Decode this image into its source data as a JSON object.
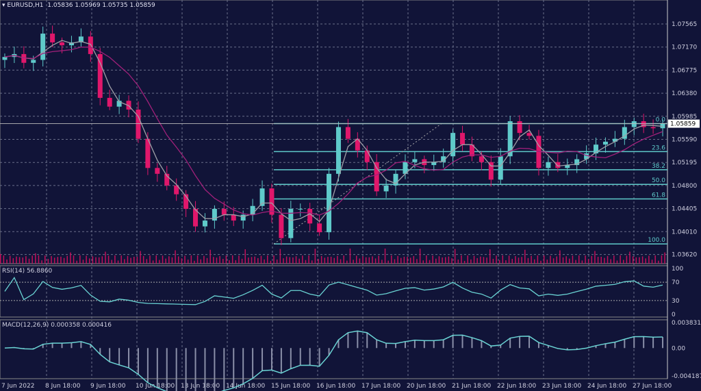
{
  "header": {
    "symbol": "EURUSD,H1",
    "ohlc": "1.05836 1.05969 1.05735 1.05859",
    "menu_icon": "triangle-down-icon"
  },
  "colors": {
    "background": "#111438",
    "bull": "#5fcaca",
    "bear": "#e0176b",
    "ma_fast": "#a0a0a8",
    "ma_slow": "#a0207a",
    "fib": "#5fcaca",
    "volume": "#c0105a",
    "indicator": "#6ad4d4",
    "grid": "#6a6f8a"
  },
  "chart_data": {
    "type": "candlestick",
    "instrument": "EURUSD",
    "timeframe": "H1",
    "x_tick_labels": [
      "7 Jun 2022",
      "8 Jun 18:00",
      "9 Jun 18:00",
      "10 Jun 18:00",
      "13 Jun 18:00",
      "14 Jun 18:00",
      "15 Jun 18:00",
      "16 Jun 18:00",
      "17 Jun 18:00",
      "20 Jun 18:00",
      "21 Jun 18:00",
      "22 Jun 18:00",
      "23 Jun 18:00",
      "24 Jun 18:00",
      "27 Jun 18:00"
    ],
    "y_tick_labels": [
      "1.07565",
      "1.07170",
      "1.06775",
      "1.06380",
      "1.05985",
      "1.05590",
      "1.05195",
      "1.04800",
      "1.04405",
      "1.04010",
      "1.03620"
    ],
    "ylim": [
      1.0345,
      1.0795
    ],
    "current_price": "1.05859",
    "close": [
      1.07,
      1.0705,
      1.069,
      1.0695,
      1.074,
      1.0725,
      1.072,
      1.0725,
      1.0735,
      1.0705,
      1.063,
      1.0615,
      1.0625,
      1.061,
      1.056,
      1.051,
      1.05,
      1.048,
      1.0465,
      1.044,
      1.041,
      1.042,
      1.044,
      1.043,
      1.042,
      1.043,
      1.0445,
      1.0475,
      1.043,
      1.039,
      1.044,
      1.044,
      1.0415,
      1.04,
      1.05,
      1.058,
      1.056,
      1.054,
      1.052,
      1.047,
      1.048,
      1.05,
      1.052,
      1.0525,
      1.0515,
      1.052,
      1.053,
      1.057,
      1.055,
      1.053,
      1.052,
      1.049,
      1.053,
      1.059,
      1.057,
      1.0565,
      1.051,
      1.052,
      1.051,
      1.0515,
      1.0525,
      1.0535,
      1.055,
      1.0555,
      1.056,
      1.058,
      1.059,
      1.058,
      1.0578,
      1.0586
    ],
    "fibonacci": [
      {
        "label": "0.0",
        "price": 1.0586
      },
      {
        "label": "23.6",
        "price": 1.0538
      },
      {
        "label": "38.2",
        "price": 1.0507
      },
      {
        "label": "50.0",
        "price": 1.0482
      },
      {
        "label": "61.8",
        "price": 1.0457
      },
      {
        "label": "100.0",
        "price": 1.038
      }
    ],
    "rsi": {
      "label": "RSI(14) 56.8860",
      "ticks": [
        "100",
        "70",
        "30",
        "0"
      ],
      "levels": [
        70,
        30
      ]
    },
    "macd": {
      "label": "MACD(12,26,9) 0.000358 0.000416",
      "ticks": [
        "0.003831",
        "0.00",
        "-0.004187"
      ],
      "range": [
        -0.004187,
        0.003831
      ]
    }
  }
}
